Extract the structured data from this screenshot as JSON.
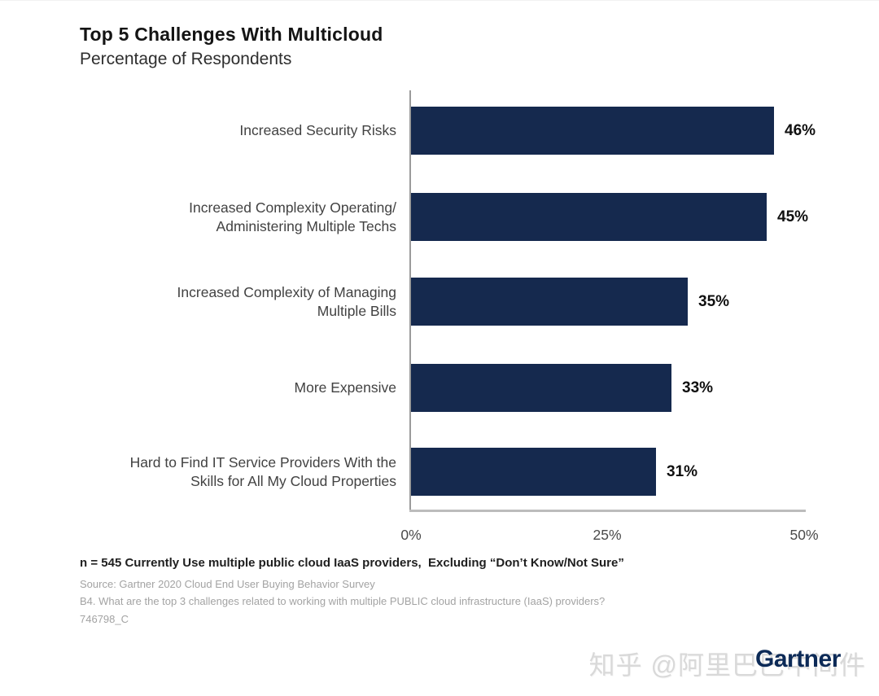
{
  "header": {
    "title": "Top 5 Challenges With Multicloud",
    "subtitle": "Percentage of Respondents"
  },
  "chart_data": {
    "type": "bar",
    "orientation": "horizontal",
    "title": "Top 5 Challenges With Multicloud",
    "subtitle": "Percentage of Respondents",
    "xlim": [
      0,
      50
    ],
    "x_ticks": [
      "0%",
      "25%",
      "50%"
    ],
    "grid": false,
    "legend": false,
    "bar_color": "#15294e",
    "categories": [
      "Increased Security Risks",
      "Increased Complexity Operating/ Administering Multiple Techs",
      "Increased Complexity of Managing Multiple Bills",
      "More Expensive",
      "Hard to Find IT Service Providers With the Skills for All My Cloud Properties"
    ],
    "values": [
      46,
      45,
      35,
      33,
      31
    ],
    "rows": [
      {
        "label_lines": [
          "Increased Security Risks",
          ""
        ],
        "value": 46,
        "value_label": "46%"
      },
      {
        "label_lines": [
          "Increased Complexity Operating/",
          "Administering Multiple Techs"
        ],
        "value": 45,
        "value_label": "45%"
      },
      {
        "label_lines": [
          "Increased Complexity of Managing",
          "Multiple Bills"
        ],
        "value": 35,
        "value_label": "35%"
      },
      {
        "label_lines": [
          "More Expensive",
          ""
        ],
        "value": 33,
        "value_label": "33%"
      },
      {
        "label_lines": [
          "Hard to Find IT Service Providers With the",
          "Skills for All My Cloud Properties"
        ],
        "value": 31,
        "value_label": "31%"
      }
    ]
  },
  "footnotes": {
    "n_line": "n = 545 Currently Use multiple public cloud IaaS providers,  Excluding “Don’t Know/Not Sure”",
    "source": "Source: Gartner 2020 Cloud End User Buying Behavior Survey",
    "question": "B4. What are the top 3 challenges related to working with multiple PUBLIC cloud infrastructure (IaaS) providers?",
    "doc_id": "746798_C"
  },
  "branding": {
    "logo_text": "Gartner",
    "watermark_text": "知乎 @阿里巴巴中间件"
  }
}
